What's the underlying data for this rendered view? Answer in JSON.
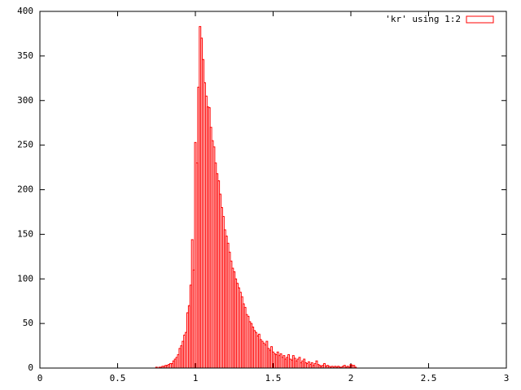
{
  "chart_data": {
    "type": "bar",
    "series": [
      {
        "name": "'kr' using 1:2",
        "color": "#ff0000",
        "x": [
          0,
          0.05,
          0.1,
          0.15,
          0.2,
          0.25,
          0.3,
          0.35,
          0.4,
          0.45,
          0.5,
          0.55,
          0.6,
          0.65,
          0.7,
          0.71,
          0.72,
          0.73,
          0.74,
          0.75,
          0.76,
          0.77,
          0.78,
          0.79,
          0.8,
          0.81,
          0.82,
          0.83,
          0.84,
          0.85,
          0.86,
          0.87,
          0.88,
          0.89,
          0.9,
          0.91,
          0.92,
          0.93,
          0.94,
          0.95,
          0.96,
          0.97,
          0.98,
          0.99,
          1,
          1.01,
          1.02,
          1.03,
          1.04,
          1.05,
          1.06,
          1.07,
          1.08,
          1.09,
          1.1,
          1.11,
          1.12,
          1.13,
          1.14,
          1.15,
          1.16,
          1.17,
          1.18,
          1.19,
          1.2,
          1.21,
          1.22,
          1.23,
          1.24,
          1.25,
          1.26,
          1.27,
          1.28,
          1.29,
          1.3,
          1.31,
          1.32,
          1.33,
          1.34,
          1.35,
          1.36,
          1.37,
          1.38,
          1.39,
          1.4,
          1.41,
          1.42,
          1.43,
          1.44,
          1.45,
          1.46,
          1.47,
          1.48,
          1.49,
          1.5,
          1.51,
          1.52,
          1.53,
          1.54,
          1.55,
          1.56,
          1.57,
          1.58,
          1.59,
          1.6,
          1.61,
          1.62,
          1.63,
          1.64,
          1.65,
          1.66,
          1.67,
          1.68,
          1.69,
          1.7,
          1.71,
          1.72,
          1.73,
          1.74,
          1.75,
          1.76,
          1.77,
          1.78,
          1.79,
          1.8,
          1.81,
          1.82,
          1.83,
          1.84,
          1.85,
          1.86,
          1.87,
          1.88,
          1.89,
          1.9,
          1.91,
          1.92,
          1.93,
          1.94,
          1.95,
          1.96,
          1.97,
          1.98,
          1.99,
          2,
          2.01,
          2.02,
          2.03,
          2.04,
          2.05,
          2.06,
          2.07,
          2.08,
          2.09,
          2.1,
          2.15,
          2.2,
          2.25,
          2.3,
          2.35,
          2.4,
          2.45,
          2.5,
          2.55,
          2.6,
          2.65,
          2.7,
          2.75,
          2.8,
          2.85,
          2.9
        ],
        "values": [
          0,
          0,
          0,
          0,
          0,
          0,
          0,
          0,
          0,
          0,
          0,
          0,
          0,
          0,
          0,
          0,
          0,
          0,
          0,
          1,
          0,
          1,
          1,
          2,
          2,
          3,
          3,
          4,
          5,
          5,
          8,
          10,
          12,
          15,
          22,
          25,
          30,
          37,
          40,
          62,
          70,
          93,
          144,
          110,
          253,
          230,
          315,
          383,
          370,
          346,
          320,
          305,
          293,
          292,
          270,
          255,
          248,
          230,
          218,
          210,
          195,
          180,
          170,
          155,
          148,
          140,
          130,
          120,
          112,
          108,
          100,
          95,
          90,
          85,
          80,
          72,
          68,
          60,
          58,
          52,
          50,
          46,
          42,
          40,
          36,
          38,
          32,
          30,
          28,
          26,
          30,
          22,
          20,
          24,
          18,
          16,
          15,
          18,
          14,
          16,
          12,
          14,
          10,
          12,
          15,
          10,
          9,
          14,
          11,
          8,
          10,
          12,
          6,
          8,
          10,
          6,
          5,
          7,
          4,
          6,
          3,
          5,
          8,
          4,
          3,
          2,
          3,
          5,
          2,
          3,
          2,
          1,
          2,
          1,
          2,
          1,
          2,
          1,
          1,
          2,
          3,
          1,
          2,
          1,
          4,
          3,
          3,
          1,
          0,
          0,
          0,
          0,
          0,
          0,
          0,
          0,
          0,
          0,
          0,
          0,
          0,
          0,
          0,
          0,
          0,
          0,
          0,
          0,
          0,
          0,
          0
        ]
      }
    ],
    "xlim": [
      0,
      3
    ],
    "xticks": [
      0,
      0.5,
      1,
      1.5,
      2,
      2.5,
      3
    ],
    "ylim": [
      0,
      400
    ],
    "yticks": [
      0,
      50,
      100,
      150,
      200,
      250,
      300,
      350,
      400
    ],
    "legend": "top-right"
  }
}
